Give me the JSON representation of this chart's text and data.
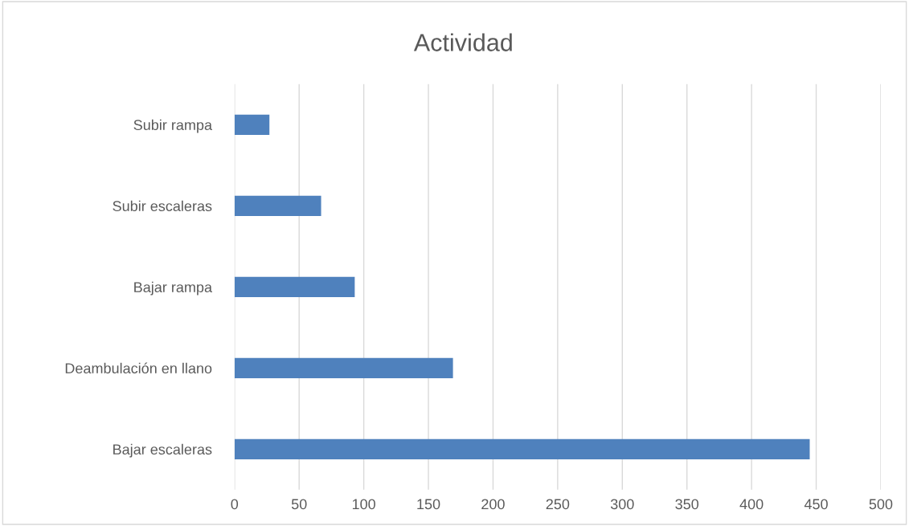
{
  "chart_data": {
    "type": "bar",
    "orientation": "horizontal",
    "title": "Actividad",
    "categories": [
      "Subir rampa",
      "Subir escaleras",
      "Bajar rampa",
      "Deambulación en llano",
      "Bajar escaleras"
    ],
    "values": [
      27,
      67,
      93,
      169,
      445
    ],
    "color": "#4f81bd",
    "xlim": [
      0,
      500
    ],
    "xticks": [
      0,
      50,
      100,
      150,
      200,
      250,
      300,
      350,
      400,
      450,
      500
    ],
    "grid": "x",
    "legend": false
  }
}
